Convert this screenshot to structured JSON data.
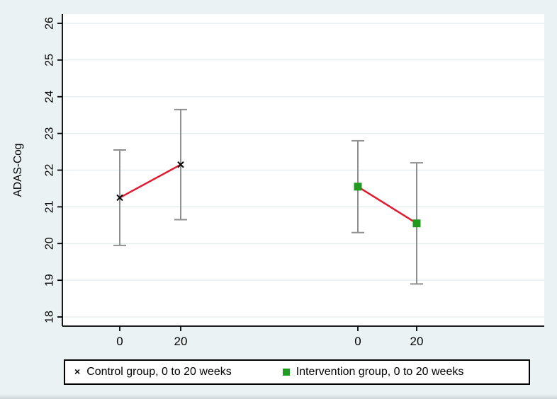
{
  "figure": {
    "background_color": "#eaf2f3",
    "plot_background": "#ffffff",
    "gridline_color": "#e7eef0",
    "axis_color": "#000000"
  },
  "chart_data": {
    "type": "line",
    "title": "",
    "xlabel": "",
    "ylabel": "ADAS-Cog",
    "ylim": [
      17.75,
      26.25
    ],
    "yticks": [
      18,
      19,
      20,
      21,
      22,
      23,
      24,
      25,
      26
    ],
    "grid": true,
    "legend_position": "bottom",
    "error_bar_color": "#8f8f8f",
    "connect_line_color": "#df1b32",
    "series": [
      {
        "name": "Control group, 0 to 20 weeks",
        "marker": "x",
        "marker_color": "#000000",
        "x": [
          0,
          20
        ],
        "values": [
          21.25,
          22.15
        ],
        "ci_low": [
          19.95,
          20.65
        ],
        "ci_high": [
          22.55,
          23.65
        ]
      },
      {
        "name": "Intervention group, 0 to 20 weeks",
        "marker": "square",
        "marker_color": "#1f9c1f",
        "x": [
          0,
          20
        ],
        "values": [
          21.55,
          20.55
        ],
        "ci_low": [
          20.3,
          18.9
        ],
        "ci_high": [
          22.8,
          22.2
        ]
      }
    ]
  },
  "legend": {
    "entries": [
      {
        "marker": "x",
        "marker_color": "#000000",
        "label": "Control group, 0 to 20 weeks"
      },
      {
        "marker": "square",
        "marker_color": "#1f9c1f",
        "label": "Intervention group, 0 to 20 weeks"
      }
    ]
  }
}
